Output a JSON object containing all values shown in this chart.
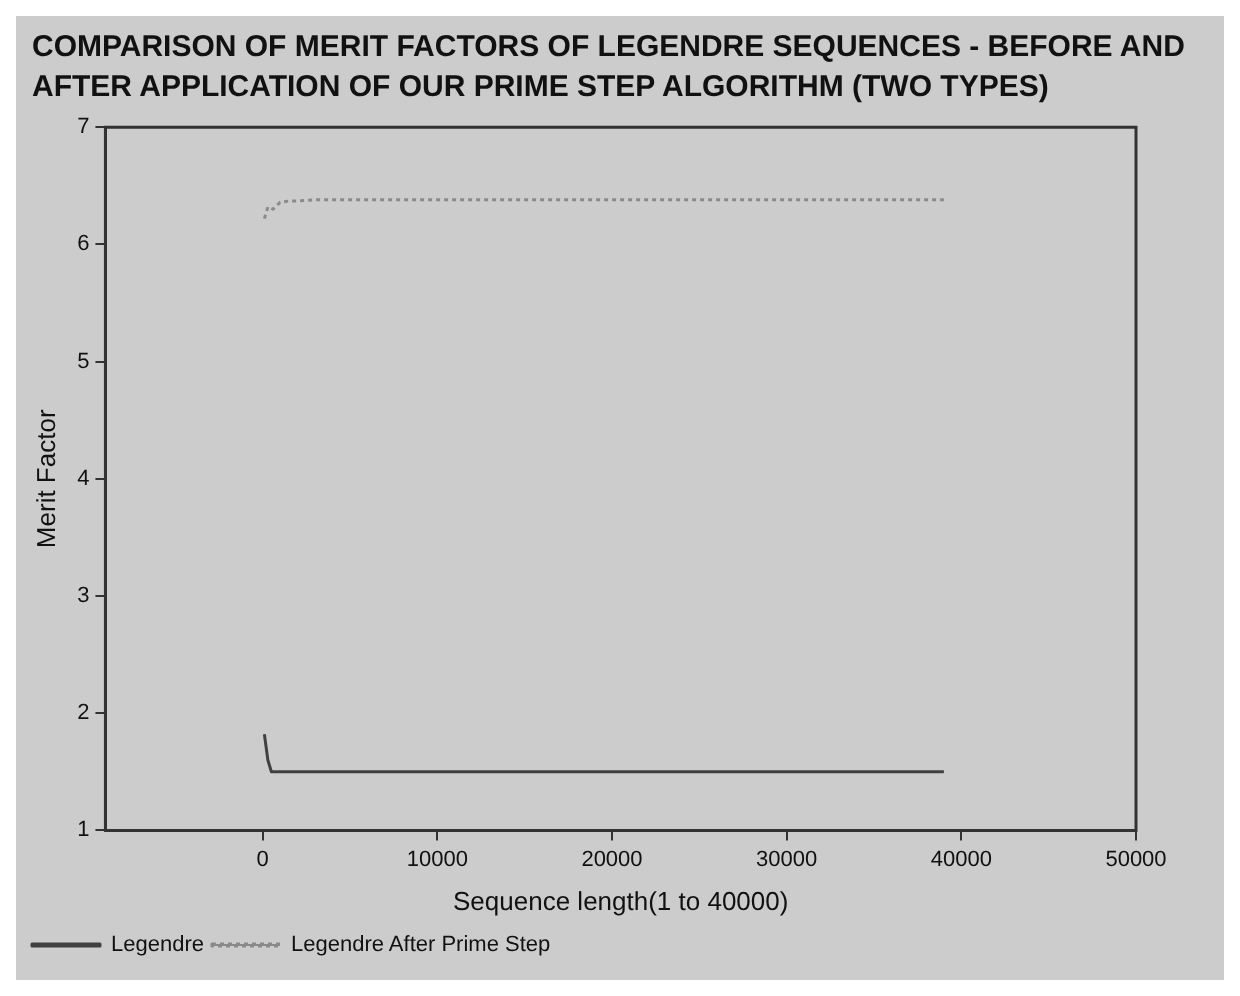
{
  "chart_data": {
    "type": "line",
    "title": "COMPARISON OF MERIT FACTORS OF LEGENDRE SEQUENCES - BEFORE AND AFTER APPLICATION OF OUR PRIME STEP ALGORITHM (TWO TYPES)",
    "xlabel": "Sequence length(1 to 40000)",
    "ylabel": "Merit Factor",
    "xlim": [
      -9000,
      50000
    ],
    "xticks": [
      0,
      10000,
      20000,
      30000,
      40000,
      50000
    ],
    "ylim": [
      1,
      7
    ],
    "yticks": [
      1,
      2,
      3,
      4,
      5,
      6,
      7
    ],
    "grid": false,
    "legend": "bottom left",
    "marker": "none",
    "series": [
      {
        "name": "Legendre",
        "color": "#404040",
        "line_style": "solid",
        "x": [
          100,
          300,
          500,
          1000,
          39000
        ],
        "values": [
          1.82,
          1.6,
          1.5,
          1.5,
          1.5
        ]
      },
      {
        "name": "Legendre After Prime Step",
        "color": "#8a8a8a",
        "line_style": "dotted",
        "x": [
          100,
          300,
          600,
          1000,
          1500,
          2000,
          3000,
          5000,
          10000,
          20000,
          30000,
          39000
        ],
        "values": [
          6.22,
          6.32,
          6.3,
          6.36,
          6.37,
          6.37,
          6.38,
          6.38,
          6.38,
          6.38,
          6.38,
          6.38
        ]
      }
    ]
  }
}
